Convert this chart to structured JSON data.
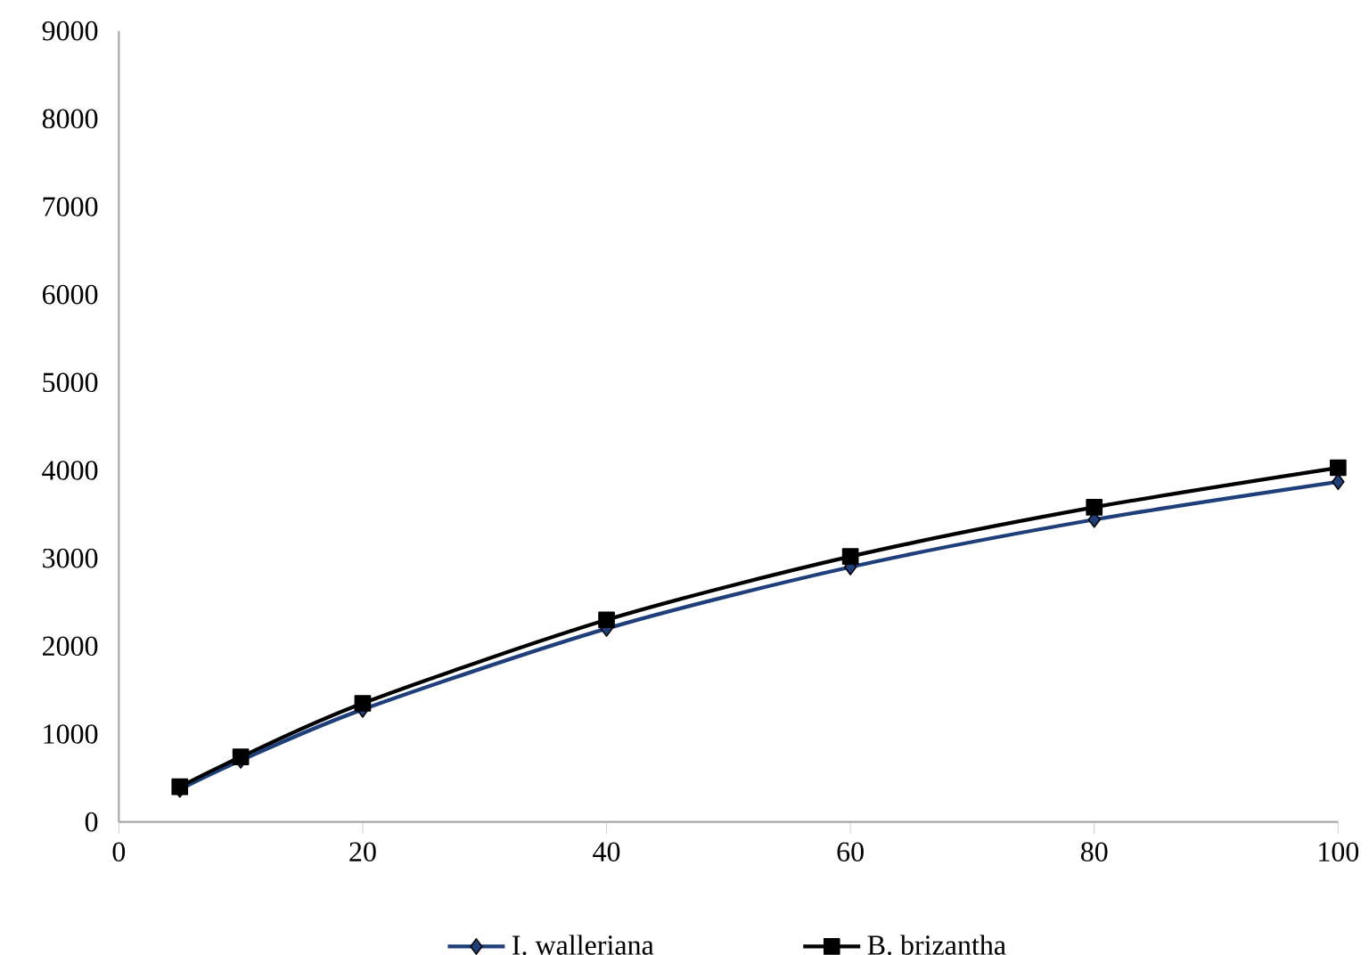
{
  "chart_data": {
    "type": "line",
    "xlim": [
      0,
      100
    ],
    "ylim": [
      0,
      9000
    ],
    "xticks": [
      0,
      20,
      40,
      60,
      80,
      100
    ],
    "yticks": [
      0,
      1000,
      2000,
      3000,
      4000,
      5000,
      6000,
      7000,
      8000,
      9000
    ],
    "grid": false,
    "legend": "bottom",
    "series": [
      {
        "name": "I. walleriana",
        "color": "#1f3f7a",
        "marker": "diamond",
        "x": [
          5,
          10,
          20,
          40,
          60,
          80,
          100
        ],
        "values": [
          370,
          700,
          1280,
          2200,
          2900,
          3440,
          3870
        ]
      },
      {
        "name": "B. brizantha",
        "color": "#000000",
        "marker": "square",
        "x": [
          5,
          10,
          20,
          40,
          60,
          80,
          100
        ],
        "values": [
          400,
          740,
          1350,
          2300,
          3020,
          3580,
          4030
        ]
      }
    ]
  }
}
